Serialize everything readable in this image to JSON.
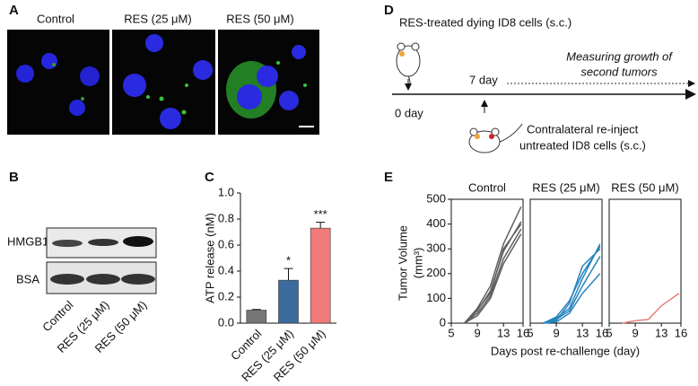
{
  "panels": {
    "a": "A",
    "b": "B",
    "c": "C",
    "d": "D",
    "e": "E"
  },
  "panel_a": {
    "labels": [
      "Control",
      "RES (25 μM)",
      "RES (50 μM)"
    ]
  },
  "panel_b": {
    "rows": [
      "HMGB1",
      "BSA"
    ],
    "lanes": [
      "Control",
      "RES (25 μM)",
      "RES (50 μM)"
    ]
  },
  "panel_d": {
    "treated": "RES-treated dying ID8 cells (s.c.)",
    "day0": "0 day",
    "day7": "7 day",
    "measure": [
      "Measuring growth of",
      "second tumors"
    ],
    "reinject": [
      "Contralateral re-inject",
      "untreated ID8 cells (s.c.)"
    ]
  },
  "panel_e_axes": {
    "y_label": [
      "Tumor Volume",
      "(mm³)"
    ],
    "x_label": "Days post re-challenge (day)"
  },
  "chart_data": [
    {
      "type": "bar",
      "y_label": "ATP release (nM)",
      "categories": [
        "Control",
        "RES (25 μM)",
        "RES (50 μM)"
      ],
      "values": [
        0.1,
        0.33,
        0.73
      ],
      "errors": [
        0.005,
        0.09,
        0.045
      ],
      "colors": [
        "#767676",
        "#3d6b9e",
        "#f27a7a"
      ],
      "annotations": [
        {
          "index": 1,
          "text": "*"
        },
        {
          "index": 2,
          "text": "***"
        }
      ],
      "ylim": [
        0,
        1.0
      ],
      "yticks": [
        {
          "value": 0,
          "label": "0.0"
        },
        0.2,
        0.4,
        0.6,
        0.8,
        {
          "value": 1,
          "label": "1.0"
        }
      ]
    },
    {
      "type": "line",
      "title": "Control",
      "x": [
        7,
        9,
        11,
        13,
        15.7
      ],
      "xlim": [
        5,
        16
      ],
      "xticks": [
        5,
        9,
        13,
        16
      ],
      "ylim": [
        0,
        500
      ],
      "yticks": [
        0,
        100,
        200,
        300,
        400,
        500
      ],
      "series": [
        {
          "color": "#606060",
          "values": [
            0,
            60,
            150,
            320,
            470
          ]
        },
        {
          "color": "#606060",
          "values": [
            0,
            50,
            130,
            290,
            410
          ]
        },
        {
          "color": "#606060",
          "values": [
            0,
            40,
            110,
            260,
            380
          ]
        },
        {
          "color": "#606060",
          "values": [
            0,
            30,
            100,
            240,
            360
          ]
        },
        {
          "color": "#606060",
          "values": [
            0,
            55,
            120,
            300,
            400
          ]
        }
      ]
    },
    {
      "type": "line",
      "title": "RES (25 μM)",
      "x": [
        7,
        9,
        11,
        13,
        15.7
      ],
      "xlim": [
        5,
        16
      ],
      "xticks": [
        5,
        9,
        13,
        16
      ],
      "ylim": [
        0,
        500
      ],
      "series": [
        {
          "color": "#2784bd",
          "values": [
            0,
            20,
            60,
            180,
            320
          ]
        },
        {
          "color": "#2784bd",
          "values": [
            0,
            10,
            80,
            230,
            300
          ]
        },
        {
          "color": "#2784bd",
          "values": [
            0,
            15,
            50,
            150,
            270
          ]
        },
        {
          "color": "#2784bd",
          "values": [
            0,
            5,
            40,
            120,
            200
          ]
        },
        {
          "color": "#2784bd",
          "values": [
            0,
            25,
            90,
            200,
            310
          ]
        }
      ]
    },
    {
      "type": "line",
      "title": "RES (50 μM)",
      "x": [
        7,
        9,
        11,
        13,
        15.7
      ],
      "xlim": [
        5,
        16
      ],
      "xticks": [
        5,
        9,
        13,
        16
      ],
      "ylim": [
        0,
        500
      ],
      "series": [
        {
          "color": "#e88080",
          "values": [
            0,
            10,
            15,
            70,
            120
          ]
        }
      ]
    }
  ]
}
